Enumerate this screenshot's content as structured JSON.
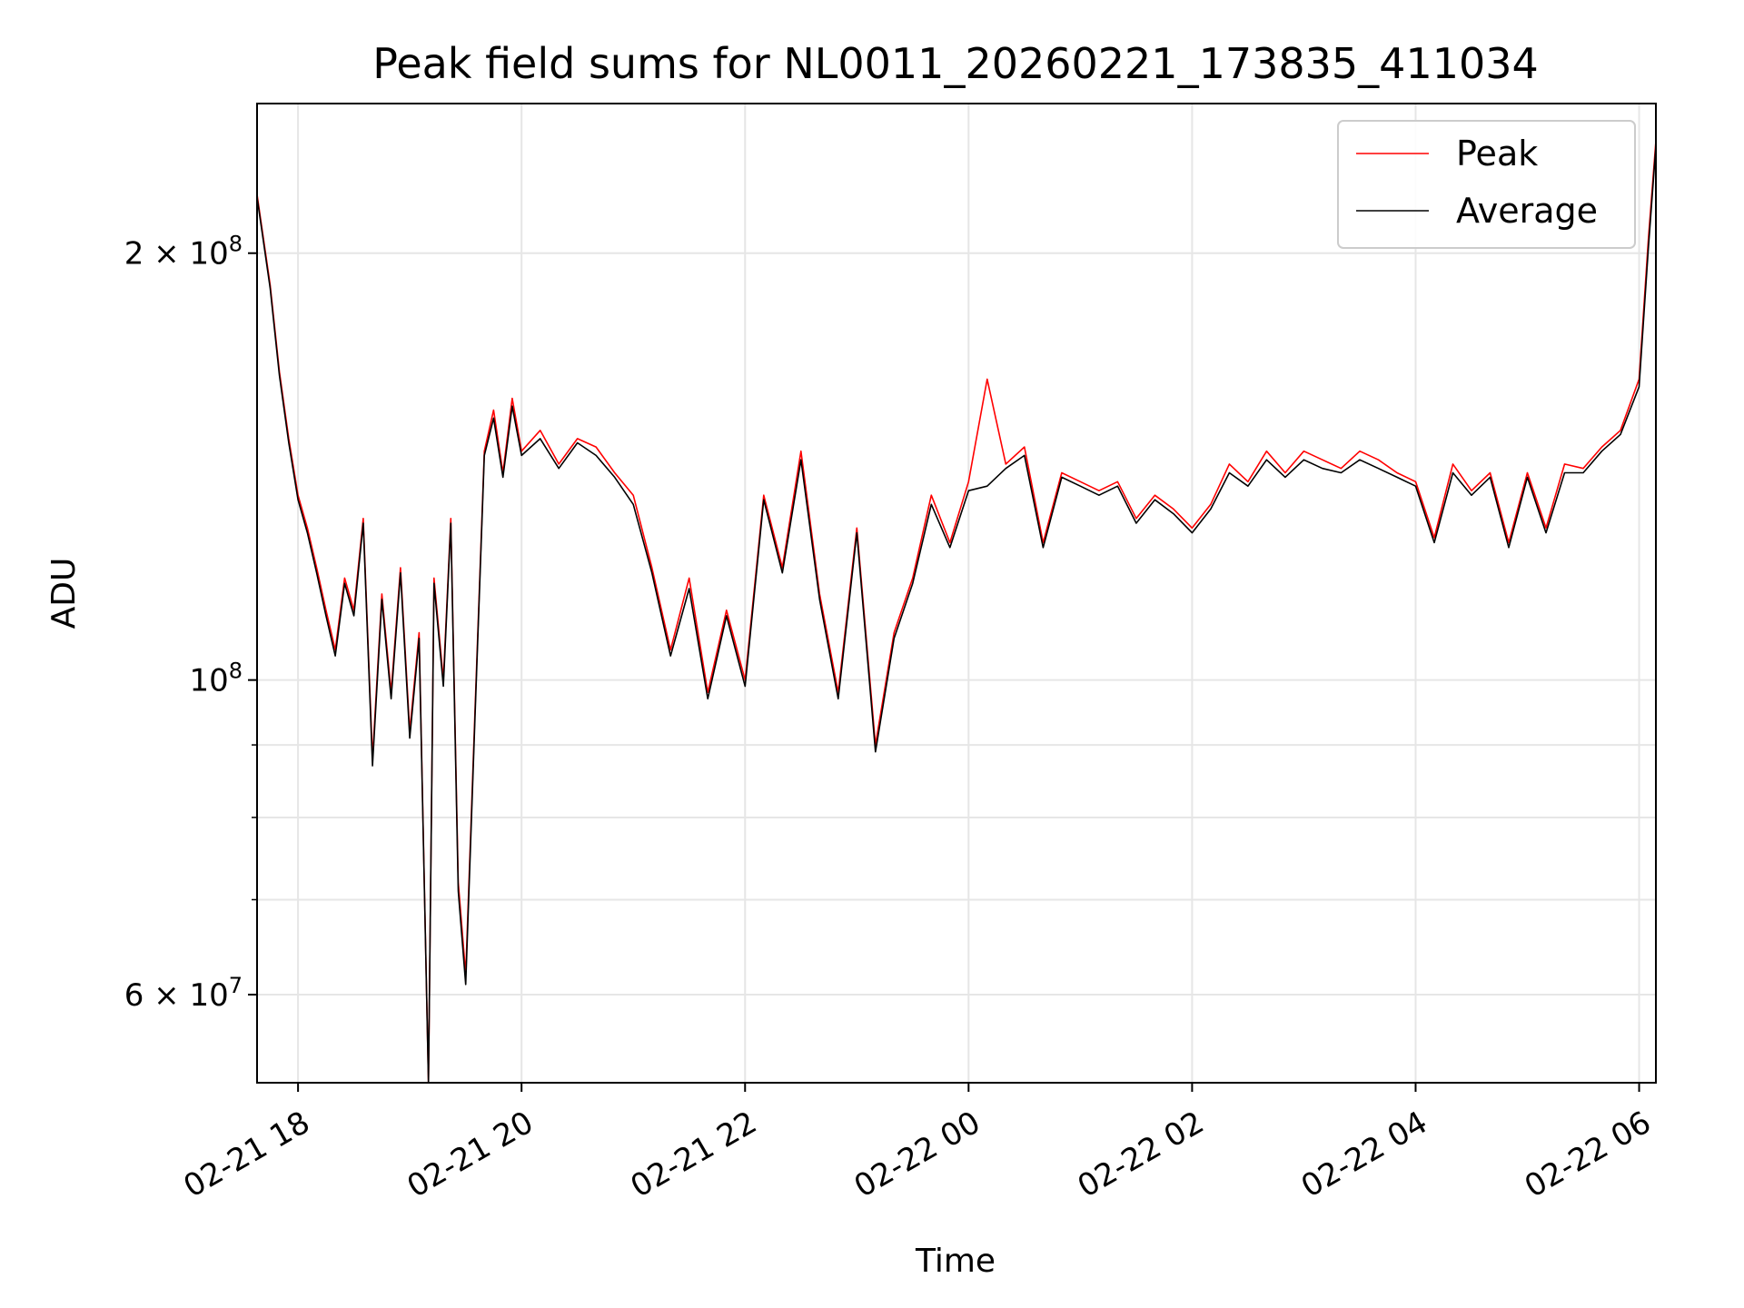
{
  "chart_data": {
    "type": "line",
    "title": "Peak field sums for NL0011_20260221_173835_411034",
    "xlabel": "Time",
    "ylabel": "ADU",
    "x_type": "datetime",
    "y_scale": "log",
    "xlim": [
      "2026-02-21 17:38",
      "2026-02-22 06:09"
    ],
    "ylim": [
      52000000,
      255000000
    ],
    "grid": true,
    "legend_position": "top-right",
    "x_ticks": [
      "2026-02-21 18:00",
      "2026-02-21 20:00",
      "2026-02-21 22:00",
      "2026-02-22 00:00",
      "2026-02-22 02:00",
      "2026-02-22 04:00",
      "2026-02-22 06:00"
    ],
    "x_tick_labels": [
      "02-21 18",
      "02-21 20",
      "02-21 22",
      "02-22 00",
      "02-22 02",
      "02-22 04",
      "02-22 06"
    ],
    "y_major_ticks": [
      60000000,
      100000000,
      200000000
    ],
    "y_tick_labels": [
      {
        "base": "6",
        "exp": "7"
      },
      {
        "base": "",
        "exp": "8"
      },
      {
        "base": "2",
        "exp": "8"
      }
    ],
    "y_minor_ticks": [
      70000000,
      80000000,
      90000000,
      300000000
    ],
    "x": [
      "2026-02-21 17:38",
      "2026-02-21 17:45",
      "2026-02-21 17:50",
      "2026-02-21 17:55",
      "2026-02-21 18:00",
      "2026-02-21 18:05",
      "2026-02-21 18:10",
      "2026-02-21 18:15",
      "2026-02-21 18:20",
      "2026-02-21 18:25",
      "2026-02-21 18:30",
      "2026-02-21 18:35",
      "2026-02-21 18:40",
      "2026-02-21 18:45",
      "2026-02-21 18:50",
      "2026-02-21 18:55",
      "2026-02-21 19:00",
      "2026-02-21 19:05",
      "2026-02-21 19:10",
      "2026-02-21 19:13",
      "2026-02-21 19:18",
      "2026-02-21 19:22",
      "2026-02-21 19:26",
      "2026-02-21 19:30",
      "2026-02-21 19:35",
      "2026-02-21 19:40",
      "2026-02-21 19:45",
      "2026-02-21 19:50",
      "2026-02-21 19:55",
      "2026-02-21 20:00",
      "2026-02-21 20:10",
      "2026-02-21 20:20",
      "2026-02-21 20:30",
      "2026-02-21 20:40",
      "2026-02-21 20:50",
      "2026-02-21 21:00",
      "2026-02-21 21:10",
      "2026-02-21 21:20",
      "2026-02-21 21:30",
      "2026-02-21 21:40",
      "2026-02-21 21:50",
      "2026-02-21 22:00",
      "2026-02-21 22:10",
      "2026-02-21 22:20",
      "2026-02-21 22:30",
      "2026-02-21 22:40",
      "2026-02-21 22:50",
      "2026-02-21 23:00",
      "2026-02-21 23:10",
      "2026-02-21 23:20",
      "2026-02-21 23:30",
      "2026-02-21 23:40",
      "2026-02-21 23:50",
      "2026-02-22 00:00",
      "2026-02-22 00:10",
      "2026-02-22 00:20",
      "2026-02-22 00:30",
      "2026-02-22 00:40",
      "2026-02-22 00:50",
      "2026-02-22 01:00",
      "2026-02-22 01:10",
      "2026-02-22 01:20",
      "2026-02-22 01:30",
      "2026-02-22 01:40",
      "2026-02-22 01:50",
      "2026-02-22 02:00",
      "2026-02-22 02:10",
      "2026-02-22 02:20",
      "2026-02-22 02:30",
      "2026-02-22 02:40",
      "2026-02-22 02:50",
      "2026-02-22 03:00",
      "2026-02-22 03:10",
      "2026-02-22 03:20",
      "2026-02-22 03:30",
      "2026-02-22 03:40",
      "2026-02-22 03:50",
      "2026-02-22 04:00",
      "2026-02-22 04:10",
      "2026-02-22 04:20",
      "2026-02-22 04:30",
      "2026-02-22 04:40",
      "2026-02-22 04:50",
      "2026-02-22 05:00",
      "2026-02-22 05:10",
      "2026-02-22 05:20",
      "2026-02-22 05:30",
      "2026-02-22 05:40",
      "2026-02-22 05:50",
      "2026-02-22 06:00",
      "2026-02-22 06:05",
      "2026-02-22 06:09"
    ],
    "series": [
      {
        "name": "Peak",
        "color": "#ff0000",
        "values": [
          220000000,
          190000000,
          165000000,
          148000000,
          135000000,
          128000000,
          120000000,
          112000000,
          105000000,
          118000000,
          112000000,
          130000000,
          88000000,
          115000000,
          98000000,
          120000000,
          92000000,
          108000000,
          52000000,
          118000000,
          100000000,
          130000000,
          72000000,
          62000000,
          95000000,
          145000000,
          155000000,
          140000000,
          158000000,
          145000000,
          150000000,
          142000000,
          148000000,
          146000000,
          140000000,
          135000000,
          120000000,
          105000000,
          118000000,
          98000000,
          112000000,
          100000000,
          135000000,
          120000000,
          145000000,
          115000000,
          98000000,
          128000000,
          90000000,
          108000000,
          118000000,
          135000000,
          125000000,
          138000000,
          163000000,
          142000000,
          146000000,
          125000000,
          140000000,
          138000000,
          136000000,
          138000000,
          130000000,
          135000000,
          132000000,
          128000000,
          133000000,
          142000000,
          138000000,
          145000000,
          140000000,
          145000000,
          143000000,
          141000000,
          145000000,
          143000000,
          140000000,
          138000000,
          126000000,
          142000000,
          136000000,
          140000000,
          125000000,
          140000000,
          128000000,
          142000000,
          141000000,
          146000000,
          150000000,
          163000000,
          205000000,
          240000000
        ]
      },
      {
        "name": "Average",
        "color": "#000000",
        "values": [
          219000000,
          189000000,
          164000000,
          147000000,
          134000000,
          127000000,
          119000000,
          111000000,
          104000000,
          117000000,
          111000000,
          129000000,
          87000000,
          114000000,
          97000000,
          119000000,
          91000000,
          107000000,
          52000000,
          117000000,
          99000000,
          129000000,
          71000000,
          61000000,
          94000000,
          144000000,
          153000000,
          139000000,
          156000000,
          144000000,
          148000000,
          141000000,
          147000000,
          144000000,
          139000000,
          133000000,
          119000000,
          104000000,
          116000000,
          97000000,
          111000000,
          99000000,
          134000000,
          119000000,
          143000000,
          114000000,
          97000000,
          127000000,
          89000000,
          107000000,
          117000000,
          133000000,
          124000000,
          136000000,
          137000000,
          141000000,
          144000000,
          124000000,
          139000000,
          137000000,
          135000000,
          137000000,
          129000000,
          134000000,
          131000000,
          127000000,
          132000000,
          140000000,
          137000000,
          143000000,
          139000000,
          143000000,
          141000000,
          140000000,
          143000000,
          141000000,
          139000000,
          137000000,
          125000000,
          140000000,
          135000000,
          139000000,
          124000000,
          139000000,
          127000000,
          140000000,
          140000000,
          145000000,
          149000000,
          161000000,
          202000000,
          238000000
        ]
      }
    ]
  }
}
